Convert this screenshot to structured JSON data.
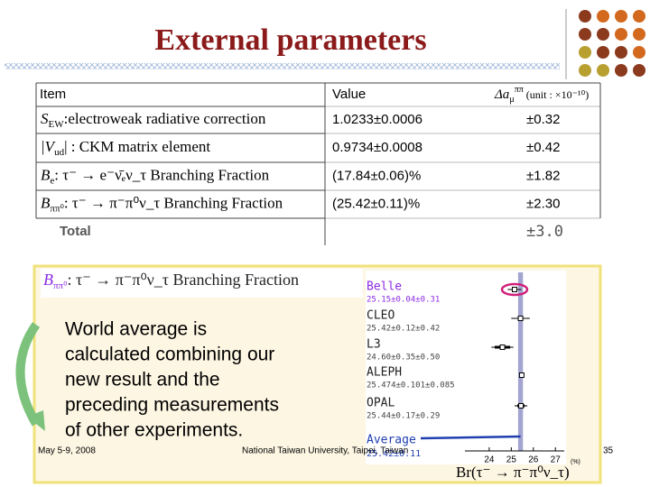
{
  "title": "External parameters",
  "table": {
    "header": {
      "item": "Item",
      "value": "Value",
      "delta_symbol": "Δa",
      "delta_sub": "μ",
      "delta_sup": "ππ",
      "delta_unit": "(unit : ×10⁻¹⁰)"
    },
    "rows": [
      {
        "symbol": "S",
        "sub": "EW",
        "description": ":electroweak radiative correction",
        "value": "1.0233±0.0006",
        "delta": "±0.32"
      },
      {
        "symbol": "|V",
        "sub": "ud",
        "description": "| : CKM matrix element",
        "value": "0.9734±0.0008",
        "delta": "±0.42"
      },
      {
        "symbol": "B",
        "sub": "e",
        "description": ": τ⁻ → e⁻ν̄ₑν_τ Branching Fraction",
        "value": "(17.84±0.06)%",
        "delta": "±1.82"
      },
      {
        "symbol": "B",
        "sub": "ππ⁰",
        "description": ": τ⁻ → π⁻π⁰ν_τ Branching Fraction",
        "value": "(25.42±0.11)%",
        "delta": "±2.30"
      }
    ],
    "total": {
      "label": "Total",
      "delta": "±3.0"
    }
  },
  "box": {
    "formula_symbol": "B",
    "formula_sub": "ππ⁰",
    "formula_description": ": τ⁻ → π⁻π⁰ν_τ Branching Fraction",
    "text_lines": [
      "World average is",
      "calculated combining our",
      "new result and the",
      "preceding measurements",
      "of other experiments."
    ]
  },
  "plot": {
    "experiments": [
      {
        "name": "Belle",
        "label": "25.15±0.04±0.31",
        "value": 25.15,
        "stat": 0.04,
        "syst": 0.31
      },
      {
        "name": "CLEO",
        "label": "25.42±0.12±0.42",
        "value": 25.42,
        "stat": 0.12,
        "syst": 0.42
      },
      {
        "name": "L3",
        "label": "24.60±0.35±0.50",
        "value": 24.6,
        "stat": 0.35,
        "syst": 0.5
      },
      {
        "name": "ALEPH",
        "label": "25.474±0.101±0.085",
        "value": 25.474,
        "stat": 0.101,
        "syst": 0.085
      },
      {
        "name": "OPAL",
        "label": "25.44±0.17±0.29",
        "value": 25.44,
        "stat": 0.17,
        "syst": 0.29
      }
    ],
    "average": {
      "name": "Average",
      "label": "25.42±0.11",
      "value": 25.42,
      "error": 0.11
    },
    "xlim": [
      22.9,
      27.4
    ],
    "xticks": [
      24,
      25,
      26,
      27
    ],
    "xlabel": "Br(τ⁻ → π⁻π⁰ν_τ)",
    "xunit": "(%)"
  },
  "footer": {
    "date": "May 5-9, 2008",
    "venue": "National Taiwan University, Taipei, Taiwan",
    "page": "35"
  }
}
